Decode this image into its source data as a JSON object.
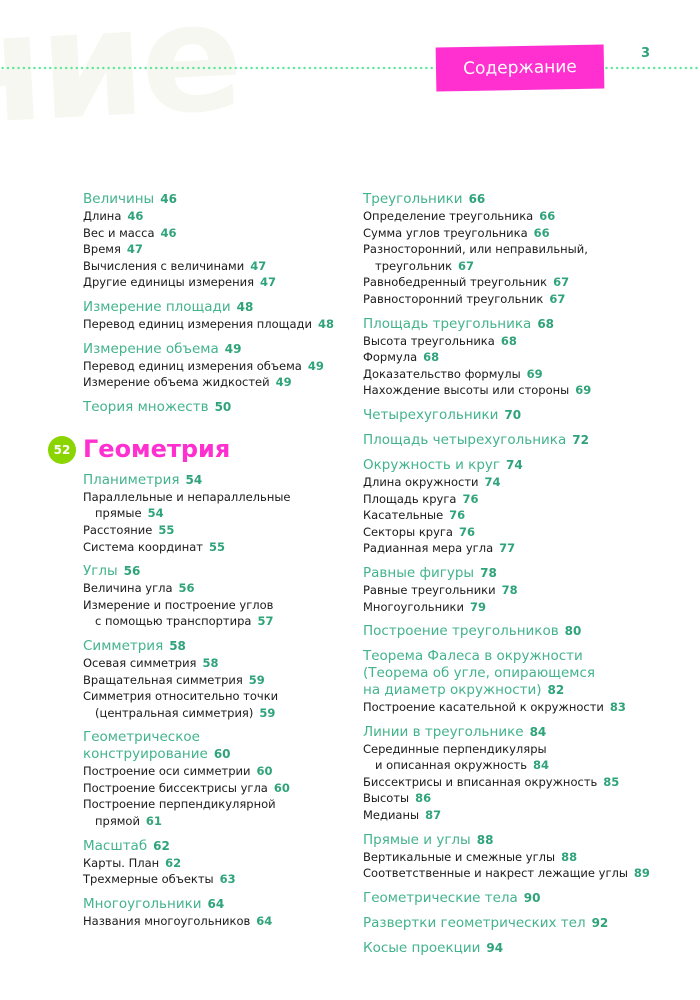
{
  "header": {
    "background_word": "ние",
    "tab_label": "Содержание",
    "page_number": "3"
  },
  "colors": {
    "pink": "#ff2fd0",
    "teal": "#43b38c",
    "lime": "#8ad400",
    "dots": "#5ee89c"
  },
  "left": [
    {
      "type": "group",
      "heading": [
        "Величины"
      ],
      "page": "46",
      "items": [
        {
          "lines": [
            "Длина"
          ],
          "page": "46"
        },
        {
          "lines": [
            "Вес и масса"
          ],
          "page": "46"
        },
        {
          "lines": [
            "Время"
          ],
          "page": "47"
        },
        {
          "lines": [
            "Вычисления с величинами"
          ],
          "page": "47"
        },
        {
          "lines": [
            "Другие единицы измерения"
          ],
          "page": "47"
        }
      ]
    },
    {
      "type": "group",
      "heading": [
        "Измерение площади"
      ],
      "page": "48",
      "items": [
        {
          "lines": [
            "Перевод единиц измерения площади"
          ],
          "page": "48"
        }
      ]
    },
    {
      "type": "group",
      "heading": [
        "Измерение объема"
      ],
      "page": "49",
      "items": [
        {
          "lines": [
            "Перевод единиц измерения объема"
          ],
          "page": "49"
        },
        {
          "lines": [
            "Измерение объема жидкостей"
          ],
          "page": "49"
        }
      ]
    },
    {
      "type": "group",
      "heading": [
        "Теория множеств"
      ],
      "page": "50",
      "items": []
    },
    {
      "type": "section",
      "badge": "52",
      "title": "Геометрия"
    },
    {
      "type": "group",
      "heading": [
        "Планиметрия"
      ],
      "page": "54",
      "items": [
        {
          "lines": [
            "Параллельные и непараллельные",
            "прямые"
          ],
          "page": "54"
        },
        {
          "lines": [
            "Расстояние"
          ],
          "page": "55"
        },
        {
          "lines": [
            "Система координат"
          ],
          "page": "55"
        }
      ]
    },
    {
      "type": "group",
      "heading": [
        "Углы"
      ],
      "page": "56",
      "items": [
        {
          "lines": [
            "Величина угла"
          ],
          "page": "56"
        },
        {
          "lines": [
            "Измерение и построение углов",
            "с помощью транспортира"
          ],
          "page": "57"
        }
      ]
    },
    {
      "type": "group",
      "heading": [
        "Симметрия"
      ],
      "page": "58",
      "items": [
        {
          "lines": [
            "Осевая симметрия"
          ],
          "page": "58"
        },
        {
          "lines": [
            "Вращательная симметрия"
          ],
          "page": "59"
        },
        {
          "lines": [
            "Симметрия относительно точки",
            "(центральная симметрия)"
          ],
          "page": "59"
        }
      ]
    },
    {
      "type": "group",
      "heading": [
        "Геометрическое",
        "конструирование"
      ],
      "page": "60",
      "items": [
        {
          "lines": [
            "Построение оси симметрии"
          ],
          "page": "60"
        },
        {
          "lines": [
            "Построение биссектрисы угла"
          ],
          "page": "60"
        },
        {
          "lines": [
            "Построение перпендикулярной",
            "прямой"
          ],
          "page": "61"
        }
      ]
    },
    {
      "type": "group",
      "heading": [
        "Масштаб"
      ],
      "page": "62",
      "items": [
        {
          "lines": [
            "Карты. План"
          ],
          "page": "62"
        },
        {
          "lines": [
            "Трехмерные объекты"
          ],
          "page": "63"
        }
      ]
    },
    {
      "type": "group",
      "heading": [
        "Многоугольники"
      ],
      "page": "64",
      "items": [
        {
          "lines": [
            "Названия многоугольников"
          ],
          "page": "64"
        }
      ]
    }
  ],
  "right": [
    {
      "type": "group",
      "heading": [
        "Треугольники"
      ],
      "page": "66",
      "items": [
        {
          "lines": [
            "Определение треугольника"
          ],
          "page": "66"
        },
        {
          "lines": [
            "Сумма углов треугольника"
          ],
          "page": "66"
        },
        {
          "lines": [
            "Разносторонний, или неправильный,",
            "треугольник"
          ],
          "page": "67"
        },
        {
          "lines": [
            "Равнобедренный треугольник"
          ],
          "page": "67"
        },
        {
          "lines": [
            "Равносторонний треугольник"
          ],
          "page": "67"
        }
      ]
    },
    {
      "type": "group",
      "heading": [
        "Площадь треугольника"
      ],
      "page": "68",
      "items": [
        {
          "lines": [
            "Высота треугольника"
          ],
          "page": "68"
        },
        {
          "lines": [
            "Формула"
          ],
          "page": "68"
        },
        {
          "lines": [
            "Доказательство формулы"
          ],
          "page": "69"
        },
        {
          "lines": [
            "Нахождение высоты или стороны"
          ],
          "page": "69"
        }
      ]
    },
    {
      "type": "group",
      "heading": [
        "Четырехугольники"
      ],
      "page": "70",
      "items": []
    },
    {
      "type": "group",
      "heading": [
        "Площадь четырехугольника"
      ],
      "page": "72",
      "items": []
    },
    {
      "type": "group",
      "heading": [
        "Окружность и круг"
      ],
      "page": "74",
      "items": [
        {
          "lines": [
            "Длина окружности"
          ],
          "page": "74"
        },
        {
          "lines": [
            "Площадь круга"
          ],
          "page": "76"
        },
        {
          "lines": [
            "Касательные"
          ],
          "page": "76"
        },
        {
          "lines": [
            "Секторы круга"
          ],
          "page": "76"
        },
        {
          "lines": [
            "Радианная мера угла"
          ],
          "page": "77"
        }
      ]
    },
    {
      "type": "group",
      "heading": [
        "Равные фигуры"
      ],
      "page": "78",
      "items": [
        {
          "lines": [
            "Равные треугольники"
          ],
          "page": "78"
        },
        {
          "lines": [
            "Многоугольники"
          ],
          "page": "79"
        }
      ]
    },
    {
      "type": "group",
      "heading": [
        "Построение треугольников"
      ],
      "page": "80",
      "items": []
    },
    {
      "type": "group",
      "heading": [
        "Теорема Фалеса в окружности",
        "(Теорема об угле, опирающемся",
        "на диаметр окружности)"
      ],
      "page": "82",
      "items": [
        {
          "lines": [
            "Построение касательной к окружности"
          ],
          "page": "83"
        }
      ]
    },
    {
      "type": "group",
      "heading": [
        "Линии в треугольнике"
      ],
      "page": "84",
      "items": [
        {
          "lines": [
            "Серединные перпендикуляры",
            "и описанная окружность"
          ],
          "page": "84"
        },
        {
          "lines": [
            "Биссектрисы и вписанная окружность"
          ],
          "page": "85"
        },
        {
          "lines": [
            "Высоты"
          ],
          "page": "86"
        },
        {
          "lines": [
            "Медианы"
          ],
          "page": "87"
        }
      ]
    },
    {
      "type": "group",
      "heading": [
        "Прямые и углы"
      ],
      "page": "88",
      "items": [
        {
          "lines": [
            "Вертикальные и смежные углы"
          ],
          "page": "88"
        },
        {
          "lines": [
            "Соответственные и накрест лежащие углы"
          ],
          "page": "89"
        }
      ]
    },
    {
      "type": "group",
      "heading": [
        "Геометрические тела"
      ],
      "page": "90",
      "items": []
    },
    {
      "type": "group",
      "heading": [
        "Развертки геометрических тел"
      ],
      "page": "92",
      "items": []
    },
    {
      "type": "group",
      "heading": [
        "Косые проекции"
      ],
      "page": "94",
      "items": []
    }
  ]
}
